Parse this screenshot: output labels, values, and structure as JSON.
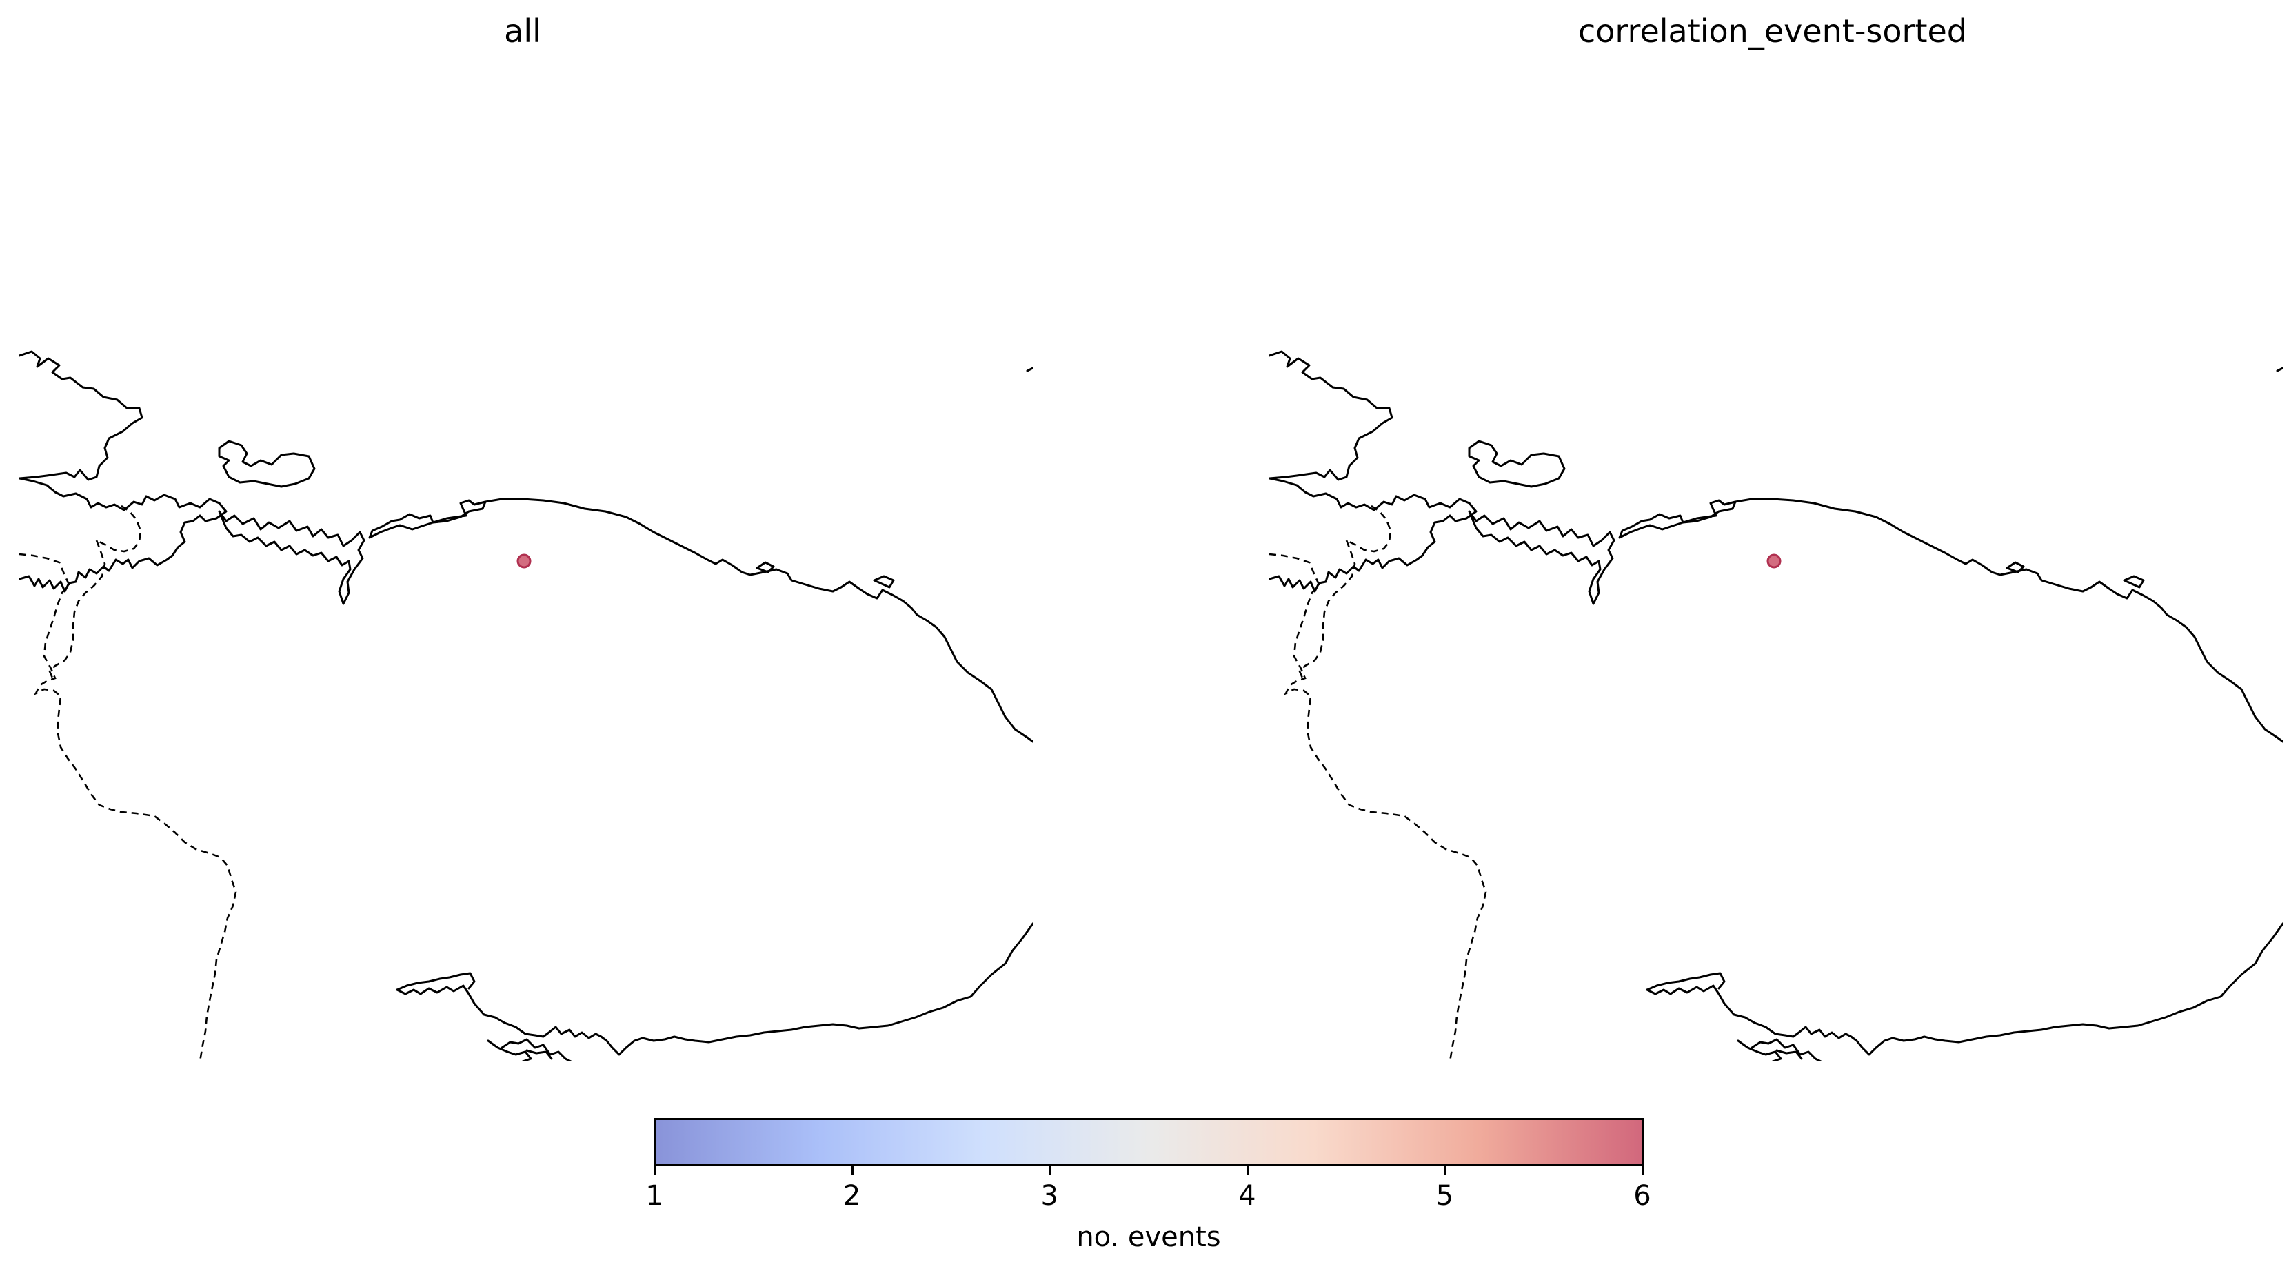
{
  "panels": [
    {
      "title": "all"
    },
    {
      "title": "correlation_event-sorted"
    }
  ],
  "event_points": [
    {
      "count": 6,
      "color": "#c84860"
    }
  ],
  "colorbar": {
    "label": "no. events",
    "ticks": [
      "1",
      "2",
      "3",
      "4",
      "5",
      "6"
    ],
    "range": [
      1,
      6
    ],
    "colormap": "coolwarm",
    "alpha": 0.6,
    "stops": [
      "#3b4cc0",
      "#7396f5",
      "#b0cbfc",
      "#dcdddd",
      "#f5c2aa",
      "#e7755b",
      "#b40426"
    ]
  }
}
